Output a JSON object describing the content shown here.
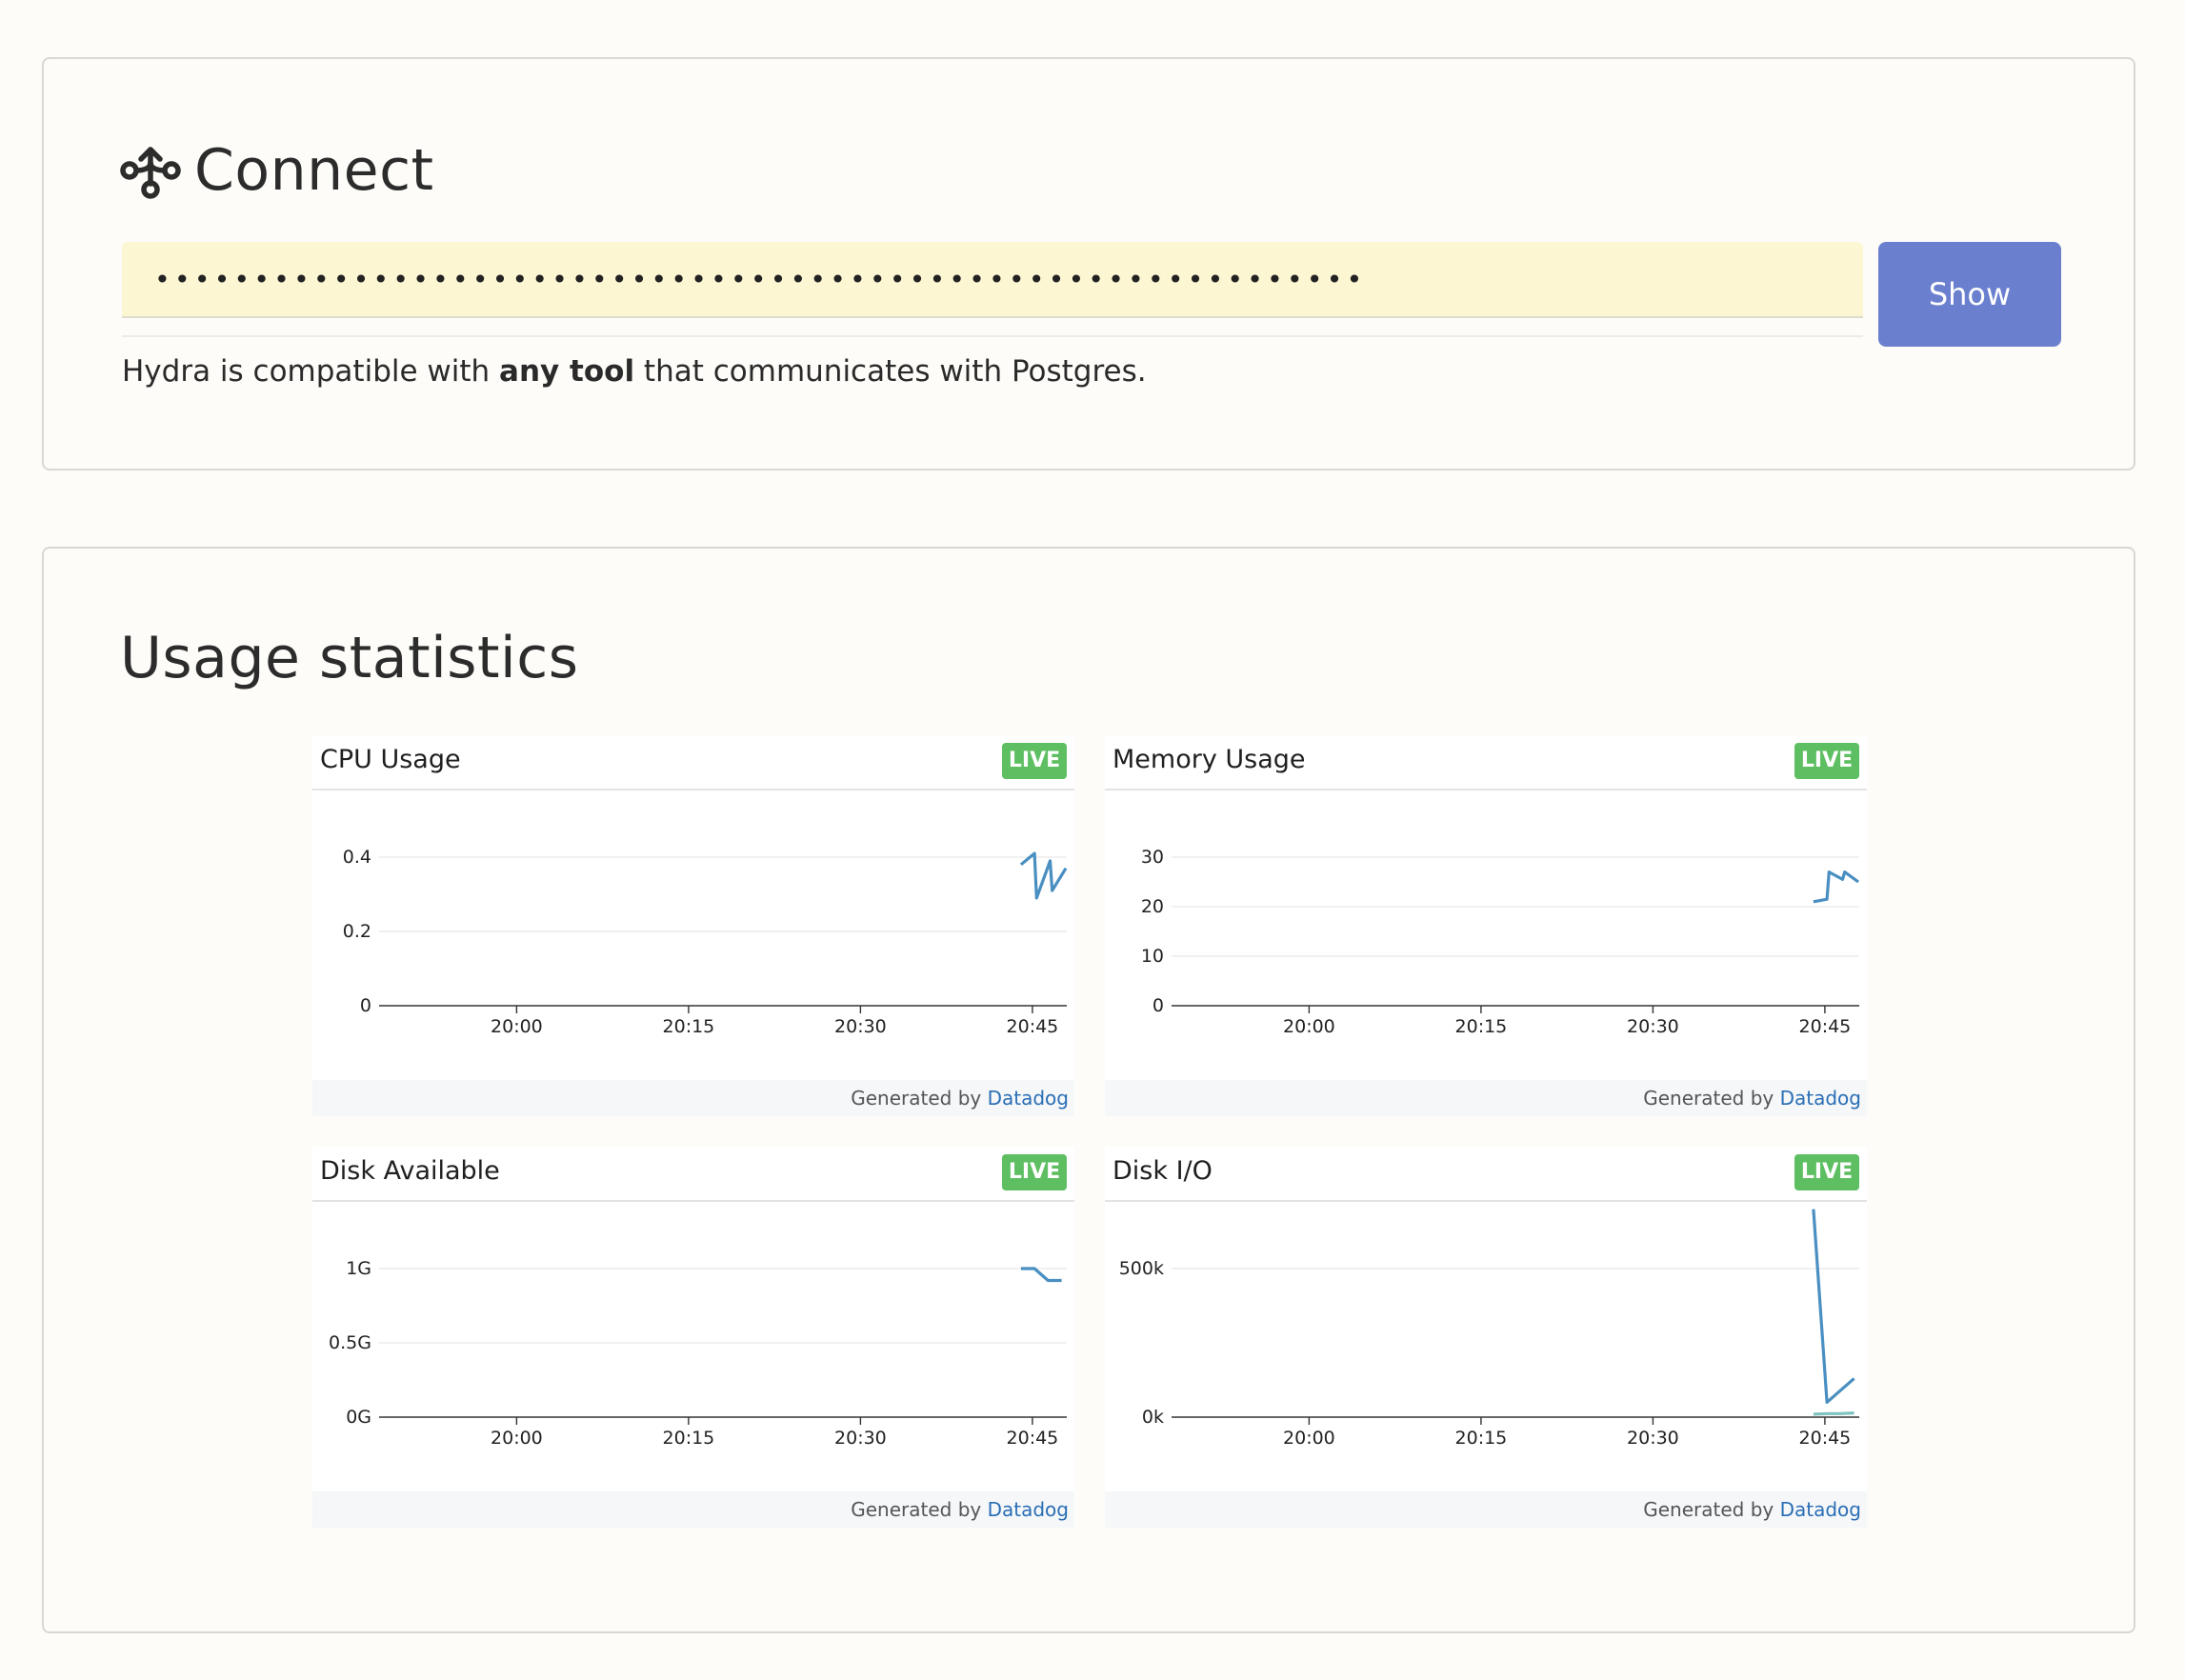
{
  "connect": {
    "title": "Connect",
    "icon": "branch-icon",
    "secret_value": "•••••••••••••••••••••••••••••••••••••••••••••••••••••••••••••",
    "show_label": "Show",
    "compat_before": "Hydra is compatible with ",
    "compat_bold": "any tool",
    "compat_after": " that communicates with Postgres."
  },
  "usage": {
    "title": "Usage statistics",
    "live_label": "LIVE",
    "footer_prefix": "Generated by ",
    "footer_link": "Datadog",
    "line_color": "#4a8fc1"
  },
  "chart_data": [
    {
      "type": "line",
      "title": "CPU Usage",
      "x_ticks": [
        "20:00",
        "20:15",
        "20:30",
        "20:45"
      ],
      "y_ticks": [
        "0",
        "0.2",
        "0.4"
      ],
      "ylim": [
        0,
        0.4
      ],
      "series": [
        {
          "x": [
            "20:44",
            "20:45",
            "20:45",
            "20:46",
            "20:46",
            "20:47"
          ],
          "values": [
            0.38,
            0.41,
            0.29,
            0.39,
            0.31,
            0.37
          ]
        }
      ]
    },
    {
      "type": "line",
      "title": "Memory Usage",
      "x_ticks": [
        "20:00",
        "20:15",
        "20:30",
        "20:45"
      ],
      "y_ticks": [
        "0",
        "10",
        "20",
        "30"
      ],
      "ylim": [
        0,
        30
      ],
      "series": [
        {
          "x": [
            "20:44",
            "20:45",
            "20:45",
            "20:46",
            "20:46",
            "20:47"
          ],
          "values": [
            21,
            21.5,
            27,
            25.5,
            27,
            25
          ]
        }
      ]
    },
    {
      "type": "line",
      "title": "Disk Available",
      "x_ticks": [
        "20:00",
        "20:15",
        "20:30",
        "20:45"
      ],
      "y_ticks": [
        "0G",
        "0.5G",
        "1G"
      ],
      "ylim": [
        0,
        1
      ],
      "series": [
        {
          "x": [
            "20:44",
            "20:45",
            "20:46",
            "20:47"
          ],
          "values": [
            1.0,
            1.0,
            0.92,
            0.92
          ]
        }
      ]
    },
    {
      "type": "line",
      "title": "Disk I/O",
      "x_ticks": [
        "20:00",
        "20:15",
        "20:30",
        "20:45"
      ],
      "y_ticks": [
        "0k",
        "500k"
      ],
      "ylim": [
        0,
        500000
      ],
      "series": [
        {
          "x": [
            "20:44",
            "20:45",
            "20:46",
            "20:47"
          ],
          "values": [
            700000,
            50000,
            90000,
            130000
          ]
        },
        {
          "x": [
            "20:44",
            "20:45",
            "20:46",
            "20:47"
          ],
          "values": [
            10000,
            12000,
            12000,
            14000
          ],
          "color": "#7fc3c0"
        }
      ]
    }
  ]
}
